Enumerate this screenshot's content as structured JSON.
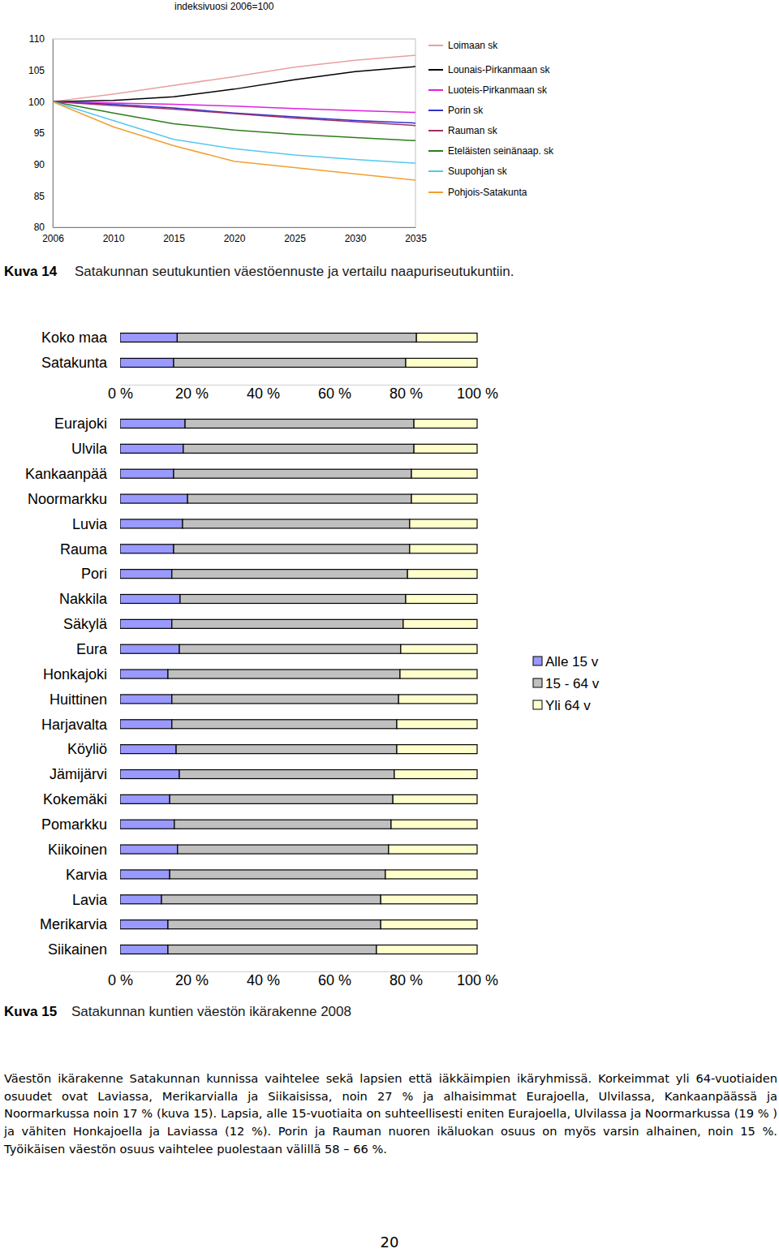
{
  "chart_data": [
    {
      "type": "line",
      "figure_label": "Kuva 14",
      "title": "Satakunnan seutukuntien väestöennuste ja vertailu naapuriseutukuntiin.",
      "y_label": "indeksivuosi 2006=100",
      "categories": [
        "2006",
        "2010",
        "2015",
        "2020",
        "2025",
        "2030",
        "2035"
      ],
      "ylim": [
        80,
        110
      ],
      "yticks": [
        80,
        85,
        90,
        95,
        100,
        105,
        110
      ],
      "legend": "right",
      "series": [
        {
          "name": "Loimaan sk",
          "color": "#e8a0a0",
          "values": [
            100,
            101.2,
            102.6,
            104,
            105.5,
            106.6,
            107.4
          ]
        },
        {
          "name": "Lounais-Pirkanmaan sk",
          "color": "#000000",
          "values": [
            100,
            100.2,
            100.8,
            102,
            103.5,
            104.8,
            105.6
          ]
        },
        {
          "name": "Luoteis-Pirkanmaan sk",
          "color": "#e020e0",
          "values": [
            100,
            99.8,
            99.6,
            99.3,
            98.9,
            98.6,
            98.3
          ]
        },
        {
          "name": "Porin sk",
          "color": "#3333cc",
          "values": [
            100,
            99.6,
            99,
            98.2,
            97.6,
            97,
            96.6
          ]
        },
        {
          "name": "Rauman sk",
          "color": "#9c2f6a",
          "values": [
            100,
            99.4,
            98.8,
            98.1,
            97.4,
            96.8,
            96.2
          ]
        },
        {
          "name": "Eteläisten seinänaap. sk",
          "color": "#2e7d1e",
          "values": [
            100,
            98.2,
            96.5,
            95.5,
            94.8,
            94.3,
            93.8
          ]
        },
        {
          "name": "Suupohjan sk",
          "color": "#55c8f0",
          "values": [
            100,
            97,
            94,
            92.5,
            91.5,
            90.8,
            90.2
          ]
        },
        {
          "name": "Pohjois-Satakunta",
          "color": "#f0a030",
          "values": [
            100,
            96,
            93,
            90.5,
            89.5,
            88.5,
            87.5
          ]
        }
      ]
    },
    {
      "type": "bar",
      "orientation": "horizontal",
      "stacked": true,
      "categories": [
        "Koko maa",
        "Satakunta"
      ],
      "xlim": [
        0,
        100
      ],
      "xticks": [
        {
          "value": 0,
          "label": "0 %"
        },
        {
          "value": 20,
          "label": "20 %"
        },
        {
          "value": 40,
          "label": "40 %"
        },
        {
          "value": 60,
          "label": "60 %"
        },
        {
          "value": 80,
          "label": "80 %"
        },
        {
          "value": 100,
          "label": "100 %"
        }
      ],
      "series": [
        {
          "color": "#9999ff",
          "values": [
            16,
            15
          ]
        },
        {
          "color": "#c0c0c0",
          "values": [
            67,
            65
          ]
        },
        {
          "color": "#ffffcc",
          "values": [
            17,
            20
          ]
        }
      ]
    },
    {
      "type": "bar",
      "orientation": "horizontal",
      "stacked": true,
      "figure_label": "Kuva 15",
      "title": "Satakunnan kuntien väestön ikärakenne 2008",
      "categories": [
        "Eurajoki",
        "Ulvila",
        "Kankaanpää",
        "Noormarkku",
        "Luvia",
        "Rauma",
        "Pori",
        "Nakkila",
        "Säkylä",
        "Eura",
        "Honkajoki",
        "Huittinen",
        "Harjavalta",
        "Köyliö",
        "Jämijärvi",
        "Kokemäki",
        "Pomarkku",
        "Kiikoinen",
        "Karvia",
        "Lavia",
        "Merikarvia",
        "Siikainen"
      ],
      "xlim": [
        0,
        100
      ],
      "xticks": [
        {
          "value": 0,
          "label": "0 %"
        },
        {
          "value": 20,
          "label": "20 %"
        },
        {
          "value": 40,
          "label": "40 %"
        },
        {
          "value": 60,
          "label": "60 %"
        },
        {
          "value": 80,
          "label": "80 %"
        },
        {
          "value": 100,
          "label": "100 %"
        }
      ],
      "legend": "right",
      "series": [
        {
          "name": "Alle 15 v",
          "color": "#9999ff",
          "values": [
            18.2,
            17.7,
            15.0,
            18.9,
            17.5,
            15.0,
            14.5,
            16.8,
            14.5,
            16.6,
            13.4,
            14.5,
            14.5,
            15.7,
            16.6,
            13.9,
            15.2,
            16.1,
            13.9,
            11.6,
            13.4,
            13.4
          ]
        },
        {
          "name": "15 - 64 v",
          "color": "#c0c0c0",
          "values": [
            64.1,
            64.6,
            66.6,
            62.7,
            63.6,
            66.1,
            66.0,
            63.2,
            64.8,
            62.0,
            65.0,
            63.5,
            63.0,
            61.8,
            60.2,
            62.5,
            60.7,
            59.1,
            60.4,
            61.4,
            59.6,
            58.4
          ]
        },
        {
          "name": "Yli 64 v",
          "color": "#ffffcc",
          "values": [
            17.7,
            17.7,
            18.4,
            18.4,
            18.9,
            18.9,
            19.5,
            20.0,
            20.7,
            21.4,
            21.6,
            22.0,
            22.5,
            22.5,
            23.2,
            23.6,
            24.1,
            24.8,
            25.7,
            27.0,
            27.0,
            28.2
          ]
        }
      ]
    }
  ],
  "document": {
    "paragraph": "Väestön ikärakenne Satakunnan kunnissa vaihtelee sekä lapsien että iäkkäimpien ikäryhmissä. Korkeimmat yli 64-vuotiaiden osuudet ovat Laviassa, Merikarvialla ja Siikaisissa, noin 27 % ja alhaisimmat Eurajoella, Ulvilassa, Kankaanpäässä ja Noormarkussa noin 17 % (kuva 15). Lapsia, alle 15-vuotiaita on suhteellisesti eniten Eurajoella, Ulvilassa ja Noormarkussa (19 % ) ja vähiten Honkajoella ja  Laviassa (12 %). Porin ja Rauman nuoren ikäluokan osuus on myös varsin alhainen, noin 15 %. Työikäisen väestön osuus vaihtelee puolestaan välillä 58 – 66 %.",
    "page_number": "20"
  }
}
